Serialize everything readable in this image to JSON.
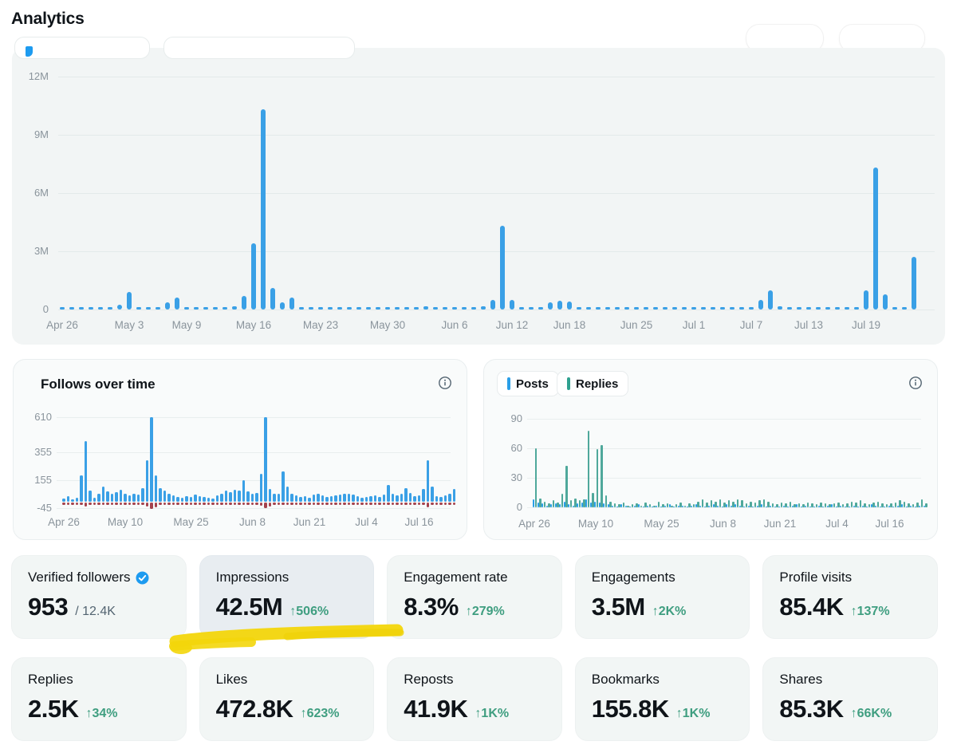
{
  "page": {
    "title": "Analytics"
  },
  "colors": {
    "bar_blue": "#3aa0e6",
    "bar_teal": "#4fa89b",
    "legend_teal": "#2fa18f",
    "bar_red": "#a4424d",
    "delta_green": "#3f9e80",
    "highlight_yellow": "#f3d60b",
    "verified_blue": "#1d9bf0",
    "panel_bg": "#f2f5f5"
  },
  "chart_data": [
    {
      "id": "impressions_over_time",
      "type": "bar",
      "title": "",
      "unit": "millions",
      "ylim": [
        0,
        12
      ],
      "grid": true,
      "bar_color": "#3aa0e6",
      "yticks": [
        {
          "label": "12M",
          "value": 12
        },
        {
          "label": "9M",
          "value": 9
        },
        {
          "label": "6M",
          "value": 6
        },
        {
          "label": "3M",
          "value": 3
        },
        {
          "label": "0",
          "value": 0
        }
      ],
      "xticks": [
        {
          "label": "Apr 26",
          "index": 0
        },
        {
          "label": "May 3",
          "index": 7
        },
        {
          "label": "May 9",
          "index": 13
        },
        {
          "label": "May 16",
          "index": 20
        },
        {
          "label": "May 23",
          "index": 27
        },
        {
          "label": "May 30",
          "index": 34
        },
        {
          "label": "Jun 6",
          "index": 41
        },
        {
          "label": "Jun 12",
          "index": 47
        },
        {
          "label": "Jun 18",
          "index": 53
        },
        {
          "label": "Jun 25",
          "index": 60
        },
        {
          "label": "Jul 1",
          "index": 66
        },
        {
          "label": "Jul 7",
          "index": 72
        },
        {
          "label": "Jul 13",
          "index": 78
        },
        {
          "label": "Jul 19",
          "index": 84
        }
      ],
      "values": [
        0.05,
        0.05,
        0.05,
        0.05,
        0.05,
        0.05,
        0.25,
        0.9,
        0.12,
        0.05,
        0.05,
        0.35,
        0.6,
        0.05,
        0.1,
        0.05,
        0.05,
        0.05,
        0.15,
        0.7,
        3.4,
        10.3,
        1.1,
        0.35,
        0.6,
        0.05,
        0.05,
        0.05,
        0.1,
        0.05,
        0.05,
        0.05,
        0.05,
        0.05,
        0.05,
        0.12,
        0.1,
        0.05,
        0.15,
        0.05,
        0.12,
        0.1,
        0.12,
        0.05,
        0.18,
        0.5,
        4.3,
        0.5,
        0.05,
        0.05,
        0.1,
        0.35,
        0.45,
        0.4,
        0.05,
        0.05,
        0.05,
        0.05,
        0.05,
        0.05,
        0.05,
        0.05,
        0.05,
        0.08,
        0.05,
        0.05,
        0.05,
        0.1,
        0.05,
        0.05,
        0.05,
        0.05,
        0.08,
        0.5,
        1.0,
        0.15,
        0.05,
        0.05,
        0.05,
        0.05,
        0.05,
        0.05,
        0.05,
        0.05,
        1.0,
        7.3,
        0.8,
        0.05,
        0.05,
        2.7
      ]
    },
    {
      "id": "follows_over_time",
      "type": "bar",
      "title": "Follows over time",
      "ylim": [
        -45,
        610
      ],
      "grid": true,
      "yticks": [
        {
          "label": "610",
          "value": 610
        },
        {
          "label": "355",
          "value": 355
        },
        {
          "label": "155",
          "value": 155
        },
        {
          "label": "-45",
          "value": -45
        }
      ],
      "xticks": [
        {
          "label": "Apr 26",
          "index": 0
        },
        {
          "label": "May 10",
          "index": 14
        },
        {
          "label": "May 25",
          "index": 29
        },
        {
          "label": "Jun 8",
          "index": 43
        },
        {
          "label": "Jun 21",
          "index": 56
        },
        {
          "label": "Jul 4",
          "index": 69
        },
        {
          "label": "Jul 16",
          "index": 81
        }
      ],
      "series": [
        {
          "name": "follows",
          "color": "#3aa0e6",
          "values": [
            25,
            40,
            20,
            30,
            190,
            440,
            80,
            30,
            60,
            110,
            75,
            60,
            70,
            85,
            55,
            45,
            60,
            50,
            95,
            300,
            610,
            190,
            95,
            80,
            60,
            45,
            35,
            30,
            40,
            35,
            50,
            40,
            35,
            30,
            25,
            45,
            60,
            80,
            70,
            85,
            80,
            155,
            75,
            55,
            65,
            200,
            610,
            90,
            55,
            60,
            220,
            110,
            60,
            45,
            35,
            40,
            30,
            50,
            55,
            45,
            35,
            40,
            45,
            50,
            55,
            60,
            50,
            40,
            30,
            35,
            40,
            45,
            35,
            50,
            120,
            55,
            45,
            60,
            100,
            65,
            40,
            45,
            90,
            300,
            110,
            40,
            35,
            45,
            60,
            90
          ]
        },
        {
          "name": "unfollows",
          "color": "#a4424d",
          "values": [
            -10,
            -12,
            -8,
            -10,
            -20,
            -28,
            -15,
            -10,
            -12,
            -14,
            -10,
            -12,
            -10,
            -14,
            -12,
            -10,
            -12,
            -10,
            -15,
            -30,
            -45,
            -35,
            -18,
            -14,
            -12,
            -10,
            -8,
            -10,
            -12,
            -10,
            -12,
            -10,
            -8,
            -10,
            -8,
            -10,
            -12,
            -14,
            -12,
            -14,
            -12,
            -16,
            -12,
            -10,
            -12,
            -25,
            -40,
            -28,
            -14,
            -12,
            -16,
            -14,
            -12,
            -10,
            -8,
            -10,
            -8,
            -10,
            -12,
            -10,
            -8,
            -10,
            -10,
            -12,
            -10,
            -12,
            -10,
            -8,
            -8,
            -10,
            -10,
            -12,
            -8,
            -12,
            -14,
            -10,
            -8,
            -12,
            -14,
            -12,
            -8,
            -10,
            -14,
            -35,
            -16,
            -10,
            -8,
            -10,
            -12,
            -14
          ]
        }
      ]
    },
    {
      "id": "posts_replies_over_time",
      "type": "bar",
      "title": "",
      "legend": [
        "Posts",
        "Replies"
      ],
      "ylim": [
        0,
        90
      ],
      "grid": true,
      "yticks": [
        {
          "label": "90",
          "value": 90
        },
        {
          "label": "60",
          "value": 60
        },
        {
          "label": "30",
          "value": 30
        },
        {
          "label": "0",
          "value": 0
        }
      ],
      "xticks": [
        {
          "label": "Apr 26",
          "index": 0
        },
        {
          "label": "May 10",
          "index": 14
        },
        {
          "label": "May 25",
          "index": 29
        },
        {
          "label": "Jun 8",
          "index": 43
        },
        {
          "label": "Jun 21",
          "index": 56
        },
        {
          "label": "Jul 4",
          "index": 69
        },
        {
          "label": "Jul 16",
          "index": 81
        }
      ],
      "series": [
        {
          "name": "Posts",
          "color": "#2a9fe8",
          "values": [
            8,
            5,
            4,
            2,
            3,
            4,
            3,
            6,
            3,
            2,
            4,
            5,
            8,
            5,
            6,
            5,
            4,
            3,
            2,
            1,
            3,
            2,
            1,
            2,
            3,
            1,
            2,
            1,
            2,
            1,
            2,
            3,
            1,
            2,
            2,
            1,
            2,
            3,
            2,
            1,
            2,
            3,
            2,
            1,
            3,
            2,
            3,
            2,
            1,
            2,
            1,
            2,
            3,
            1,
            2,
            1,
            1,
            2,
            1,
            2,
            3,
            1,
            2,
            1,
            1,
            2,
            1,
            2,
            3,
            1,
            2,
            1,
            1,
            2,
            1,
            2,
            1,
            3,
            2,
            1,
            1,
            2,
            1,
            2,
            3,
            1,
            2,
            1,
            2,
            2
          ]
        },
        {
          "name": "Replies",
          "color": "#4fa89b",
          "values": [
            60,
            9,
            6,
            4,
            7,
            5,
            14,
            42,
            7,
            9,
            7,
            8,
            78,
            15,
            59,
            63,
            12,
            6,
            4,
            3,
            5,
            2,
            3,
            4,
            2,
            5,
            3,
            2,
            6,
            3,
            4,
            2,
            3,
            5,
            2,
            4,
            3,
            6,
            8,
            5,
            7,
            6,
            8,
            5,
            7,
            6,
            8,
            7,
            4,
            6,
            5,
            7,
            8,
            6,
            4,
            3,
            5,
            4,
            6,
            3,
            4,
            3,
            5,
            4,
            3,
            5,
            4,
            3,
            4,
            5,
            3,
            4,
            6,
            5,
            7,
            4,
            3,
            5,
            6,
            4,
            3,
            4,
            5,
            7,
            6,
            4,
            3,
            5,
            8,
            4
          ]
        }
      ]
    }
  ],
  "stat_cards": {
    "row1": [
      {
        "id": "verified-followers",
        "label": "Verified followers",
        "badge": "verified",
        "value": "953",
        "total": "/ 12.4K"
      },
      {
        "id": "impressions",
        "label": "Impressions",
        "value": "42.5M",
        "delta": "↑506%",
        "highlighted": true
      },
      {
        "id": "engagement-rate",
        "label": "Engagement rate",
        "value": "8.3%",
        "delta": "↑279%"
      },
      {
        "id": "engagements",
        "label": "Engagements",
        "value": "3.5M",
        "delta": "↑2K%"
      },
      {
        "id": "profile-visits",
        "label": "Profile visits",
        "value": "85.4K",
        "delta": "↑137%"
      }
    ],
    "row2": [
      {
        "id": "replies",
        "label": "Replies",
        "value": "2.5K",
        "delta": "↑34%"
      },
      {
        "id": "likes",
        "label": "Likes",
        "value": "472.8K",
        "delta": "↑623%"
      },
      {
        "id": "reposts",
        "label": "Reposts",
        "value": "41.9K",
        "delta": "↑1K%"
      },
      {
        "id": "bookmarks",
        "label": "Bookmarks",
        "value": "155.8K",
        "delta": "↑1K%"
      },
      {
        "id": "shares",
        "label": "Shares",
        "value": "85.3K",
        "delta": "↑66K%"
      }
    ]
  }
}
